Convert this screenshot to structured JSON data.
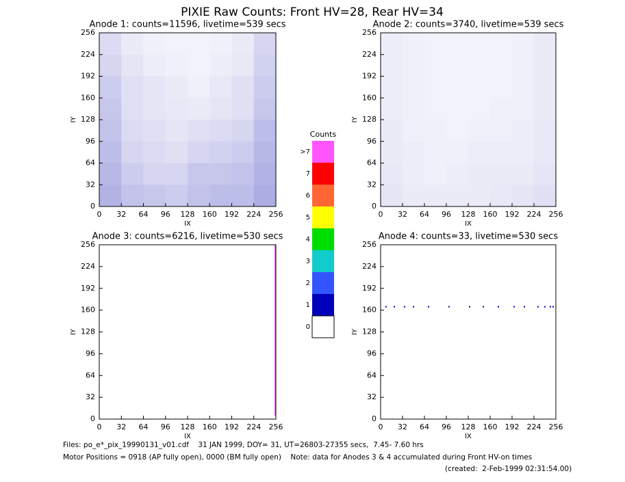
{
  "title": "PIXIE Raw Counts:  Front HV=28, Rear HV=34",
  "footer": [
    "Files: po_e*_pix_19990131_v01.cdf    31 JAN 1999, DOY= 31, UT=26803-27355 secs,  7.45- 7.60 hrs",
    "Motor Positions = 0918 (AP fully open), 0000 (BM fully open)    Note: data for Anodes 3 & 4 accumulated during Front HV-on times",
    "(created:  2-Feb-1999 02:31:54.00)"
  ],
  "chart_data": [
    {
      "type": "image",
      "title": "Anode 1: counts=11596, livetime=539 secs",
      "xlabel": "IX",
      "ylabel": "IY",
      "xlim": [
        0,
        256
      ],
      "ylim": [
        0,
        256
      ],
      "xticks": [
        0,
        32,
        64,
        96,
        128,
        160,
        192,
        224,
        256
      ],
      "yticks": [
        0,
        32,
        64,
        96,
        128,
        160,
        192,
        224,
        256
      ],
      "color": "#0000aa",
      "density": [
        [
          14,
          8,
          6,
          5,
          5,
          6,
          8,
          16
        ],
        [
          16,
          10,
          7,
          6,
          5,
          7,
          9,
          18
        ],
        [
          20,
          12,
          10,
          8,
          6,
          9,
          12,
          20
        ],
        [
          22,
          12,
          10,
          9,
          8,
          10,
          12,
          22
        ],
        [
          24,
          14,
          12,
          10,
          12,
          14,
          16,
          26
        ],
        [
          26,
          16,
          14,
          12,
          16,
          18,
          20,
          28
        ],
        [
          28,
          20,
          16,
          16,
          22,
          22,
          24,
          30
        ],
        [
          30,
          24,
          22,
          20,
          24,
          26,
          26,
          32
        ]
      ]
    },
    {
      "type": "image",
      "title": "Anode 2: counts=3740, livetime=539 secs",
      "xlabel": "IX",
      "ylabel": "IY",
      "xlim": [
        0,
        256
      ],
      "ylim": [
        0,
        256
      ],
      "xticks": [
        0,
        32,
        64,
        96,
        128,
        160,
        192,
        224,
        256
      ],
      "yticks": [
        0,
        32,
        64,
        96,
        128,
        160,
        192,
        224,
        256
      ],
      "color": "#0000aa",
      "density": [
        [
          7,
          6,
          5,
          5,
          5,
          5,
          6,
          8
        ],
        [
          7,
          6,
          5,
          5,
          5,
          5,
          6,
          8
        ],
        [
          7,
          6,
          5,
          5,
          5,
          5,
          6,
          8
        ],
        [
          7,
          6,
          5,
          5,
          5,
          6,
          6,
          8
        ],
        [
          8,
          6,
          6,
          5,
          6,
          6,
          7,
          9
        ],
        [
          8,
          7,
          6,
          6,
          7,
          7,
          7,
          9
        ],
        [
          9,
          7,
          6,
          7,
          8,
          8,
          8,
          10
        ],
        [
          10,
          8,
          8,
          8,
          8,
          9,
          10,
          12
        ]
      ]
    },
    {
      "type": "image",
      "title": "Anode 3: counts=6216, livetime=530 secs",
      "xlabel": "IX",
      "ylabel": "IY",
      "xlim": [
        0,
        256
      ],
      "ylim": [
        0,
        256
      ],
      "xticks": [
        0,
        32,
        64,
        96,
        128,
        160,
        192,
        224,
        256
      ],
      "yticks": [
        0,
        32,
        64,
        96,
        128,
        160,
        192,
        224,
        256
      ],
      "marks": {
        "style": "line",
        "color": "#ff55ff",
        "x": [
          255,
          255
        ],
        "y": [
          5,
          256
        ]
      }
    },
    {
      "type": "image",
      "title": "Anode 4: counts=33, livetime=530 secs",
      "xlabel": "IX",
      "ylabel": "IY",
      "xlim": [
        0,
        256
      ],
      "ylim": [
        0,
        256
      ],
      "xticks": [
        0,
        32,
        64,
        96,
        128,
        160,
        192,
        224,
        256
      ],
      "yticks": [
        0,
        32,
        64,
        96,
        128,
        160,
        192,
        224,
        256
      ],
      "marks": {
        "style": "dots",
        "color": "#0000aa",
        "x": [
          8,
          20,
          35,
          48,
          70,
          100,
          130,
          150,
          172,
          195,
          210,
          230,
          240,
          248,
          252
        ],
        "y": [
          165,
          165,
          165,
          165,
          165,
          165,
          165,
          165,
          165,
          165,
          165,
          165,
          165,
          165,
          165
        ]
      }
    },
    {
      "type": "colorbar",
      "title": "Counts",
      "categories": [
        ">7",
        "7",
        "6",
        "5",
        "4",
        "3",
        "2",
        "1",
        "0"
      ],
      "colors": [
        "#ff55ff",
        "#ff0000",
        "#ff6633",
        "#ffff00",
        "#00dd00",
        "#11cccc",
        "#3355ff",
        "#0000bb",
        "#ffffff"
      ]
    }
  ]
}
